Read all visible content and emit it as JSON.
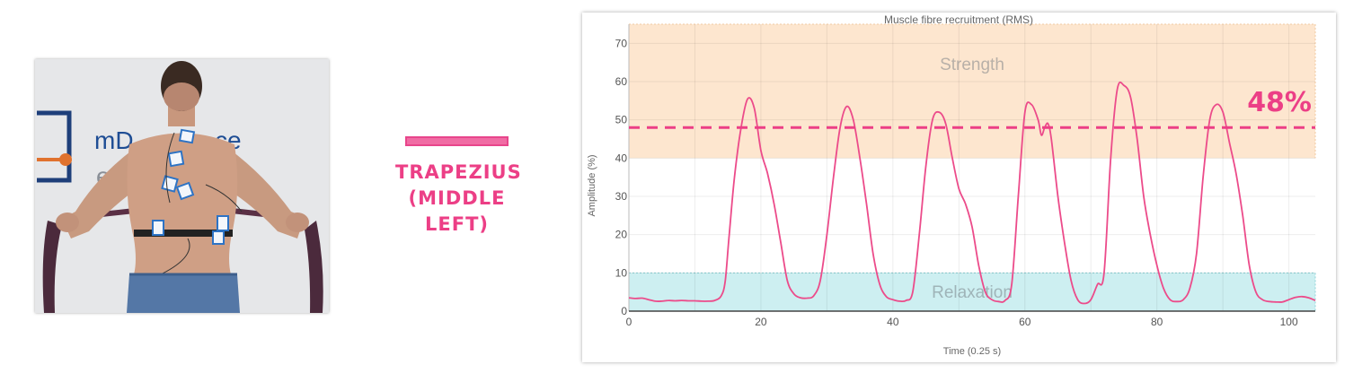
{
  "photo": {
    "wall_text_1": "mD",
    "wall_text_2": "e",
    "wall_text_3": "ce"
  },
  "muscle": {
    "lines": [
      "TRAPEZIUS",
      "(MIDDLE",
      "LEFT)"
    ],
    "color": "#ec3f86"
  },
  "chart_data": {
    "type": "line",
    "title": "Muscle fibre recruitment (RMS)",
    "xlabel": "Time (0.25 s)",
    "ylabel": "Amplitude (%)",
    "xlim": [
      0,
      104
    ],
    "ylim": [
      0,
      75
    ],
    "xticks": [
      0,
      20,
      40,
      60,
      80,
      100
    ],
    "yticks": [
      0,
      10,
      20,
      30,
      40,
      50,
      60,
      70
    ],
    "grid": true,
    "zones": [
      {
        "label": "Strength",
        "from": 40,
        "to": 75,
        "color": "#fde6cf"
      },
      {
        "label": "Relaxation",
        "from": 0,
        "to": 10,
        "color": "#cdeff1"
      }
    ],
    "threshold": {
      "value": 48,
      "label": "48%",
      "color": "#ec3f86"
    },
    "series": [
      {
        "color": "#ec4b8a",
        "points": [
          [
            0,
            3.5
          ],
          [
            1,
            3.3
          ],
          [
            2,
            3.4
          ],
          [
            3,
            3.0
          ],
          [
            4,
            2.6
          ],
          [
            5,
            2.6
          ],
          [
            6,
            2.8
          ],
          [
            7,
            2.7
          ],
          [
            8,
            2.8
          ],
          [
            9,
            2.7
          ],
          [
            10,
            2.7
          ],
          [
            11,
            2.6
          ],
          [
            12,
            2.6
          ],
          [
            13,
            2.8
          ],
          [
            14,
            4
          ],
          [
            14.6,
            8
          ],
          [
            15.2,
            20
          ],
          [
            16,
            35
          ],
          [
            17,
            48
          ],
          [
            18,
            55.5
          ],
          [
            19,
            53
          ],
          [
            20,
            42
          ],
          [
            21,
            36
          ],
          [
            22,
            28
          ],
          [
            23,
            18
          ],
          [
            24,
            8
          ],
          [
            25,
            4.5
          ],
          [
            26,
            3.5
          ],
          [
            27,
            3.4
          ],
          [
            28,
            4
          ],
          [
            29,
            8
          ],
          [
            30,
            20
          ],
          [
            31,
            35
          ],
          [
            32,
            48
          ],
          [
            33,
            53.5
          ],
          [
            34,
            50
          ],
          [
            35,
            40
          ],
          [
            36,
            28
          ],
          [
            37,
            15
          ],
          [
            38,
            7
          ],
          [
            39,
            3.8
          ],
          [
            40,
            3
          ],
          [
            41,
            2.6
          ],
          [
            42,
            2.8
          ],
          [
            43,
            5
          ],
          [
            44,
            20
          ],
          [
            45,
            38
          ],
          [
            46,
            50
          ],
          [
            47,
            52
          ],
          [
            48,
            49
          ],
          [
            49,
            40
          ],
          [
            50,
            32
          ],
          [
            51,
            28
          ],
          [
            52,
            22
          ],
          [
            53,
            12
          ],
          [
            54,
            5
          ],
          [
            55,
            3
          ],
          [
            56,
            2.5
          ],
          [
            57,
            2.8
          ],
          [
            58,
            7
          ],
          [
            59,
            30
          ],
          [
            60,
            52
          ],
          [
            61,
            54
          ],
          [
            62,
            50
          ],
          [
            62.5,
            46
          ],
          [
            63,
            48
          ],
          [
            63.5,
            49
          ],
          [
            64,
            45
          ],
          [
            65,
            30
          ],
          [
            66,
            18
          ],
          [
            67,
            8
          ],
          [
            68,
            3
          ],
          [
            69,
            2
          ],
          [
            70,
            3
          ],
          [
            71,
            7
          ],
          [
            72,
            10
          ],
          [
            73,
            40
          ],
          [
            74,
            58
          ],
          [
            75,
            59
          ],
          [
            76,
            56
          ],
          [
            77,
            45
          ],
          [
            78,
            30
          ],
          [
            79,
            20
          ],
          [
            80,
            12
          ],
          [
            81,
            6
          ],
          [
            82,
            3
          ],
          [
            83,
            2.5
          ],
          [
            84,
            3
          ],
          [
            85,
            6
          ],
          [
            86,
            15
          ],
          [
            87,
            35
          ],
          [
            88,
            50
          ],
          [
            89,
            54
          ],
          [
            90,
            52
          ],
          [
            91,
            44
          ],
          [
            92,
            36
          ],
          [
            93,
            25
          ],
          [
            94,
            12
          ],
          [
            95,
            5
          ],
          [
            96,
            3
          ],
          [
            97,
            2.5
          ],
          [
            98,
            2.4
          ],
          [
            99,
            2.4
          ],
          [
            100,
            3
          ],
          [
            101,
            3.6
          ],
          [
            102,
            3.8
          ],
          [
            103,
            3.5
          ],
          [
            104,
            2.8
          ]
        ]
      }
    ]
  }
}
